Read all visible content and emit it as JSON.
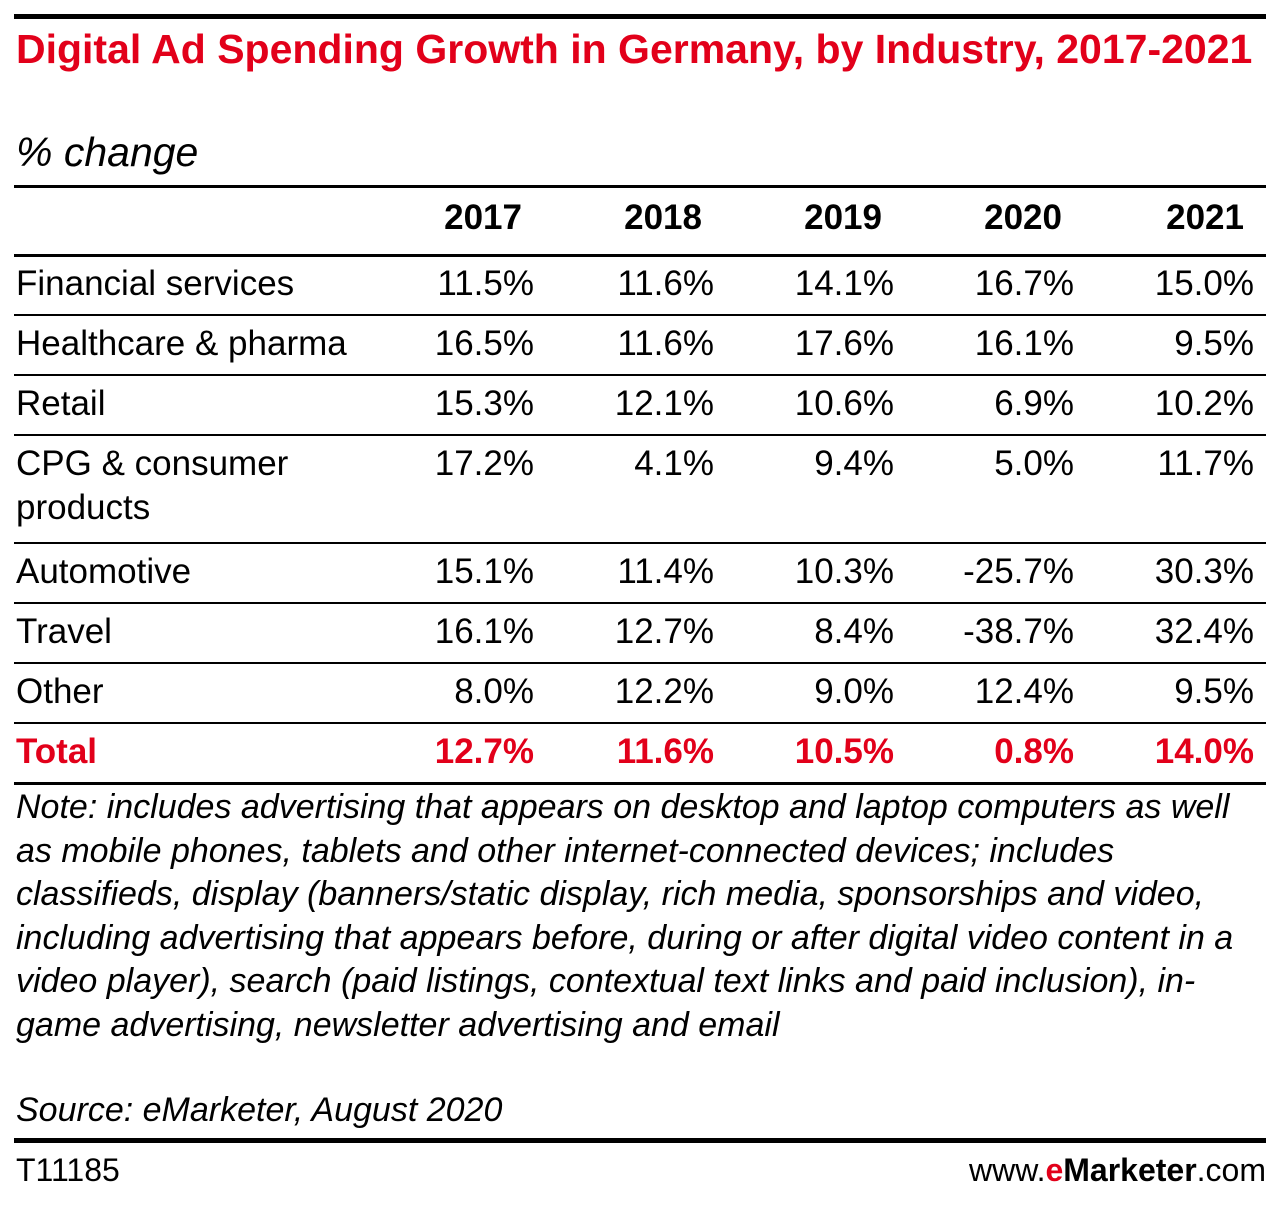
{
  "chart_data": {
    "type": "table",
    "title": "Digital Ad Spending Growth in Germany, by Industry, 2017-2021",
    "subtitle": "% change",
    "columns": [
      "2017",
      "2018",
      "2019",
      "2020",
      "2021"
    ],
    "rows": [
      {
        "label": "Financial services",
        "values": [
          "11.5%",
          "11.6%",
          "14.1%",
          "16.7%",
          "15.0%"
        ]
      },
      {
        "label": "Healthcare & pharma",
        "values": [
          "16.5%",
          "11.6%",
          "17.6%",
          "16.1%",
          "9.5%"
        ]
      },
      {
        "label": "Retail",
        "values": [
          "15.3%",
          "12.1%",
          "10.6%",
          "6.9%",
          "10.2%"
        ]
      },
      {
        "label": "CPG & consumer products",
        "values": [
          "17.2%",
          "4.1%",
          "9.4%",
          "5.0%",
          "11.7%"
        ]
      },
      {
        "label": "Automotive",
        "values": [
          "15.1%",
          "11.4%",
          "10.3%",
          "-25.7%",
          "30.3%"
        ]
      },
      {
        "label": "Travel",
        "values": [
          "16.1%",
          "12.7%",
          "8.4%",
          "-38.7%",
          "32.4%"
        ]
      },
      {
        "label": "Other",
        "values": [
          "8.0%",
          "12.2%",
          "9.0%",
          "12.4%",
          "9.5%"
        ]
      }
    ],
    "total": {
      "label": "Total",
      "values": [
        "12.7%",
        "11.6%",
        "10.5%",
        "0.8%",
        "14.0%"
      ]
    },
    "note": "Note: includes advertising that appears on desktop and laptop computers as well as mobile phones, tablets and other internet-connected devices; includes classifieds, display (banners/static display, rich media, sponsorships and video, including advertising that appears before, during or after digital video content in a video player), search (paid listings, contextual text links and paid inclusion), in-game advertising, newsletter advertising and email",
    "source": "Source: eMarketer, August 2020"
  },
  "footer": {
    "id": "T11185",
    "brand_prefix": "www.",
    "brand_e": "e",
    "brand_name": "Marketer",
    "brand_suffix": ".com"
  },
  "colors": {
    "accent": "#e2001a",
    "text": "#000000"
  }
}
